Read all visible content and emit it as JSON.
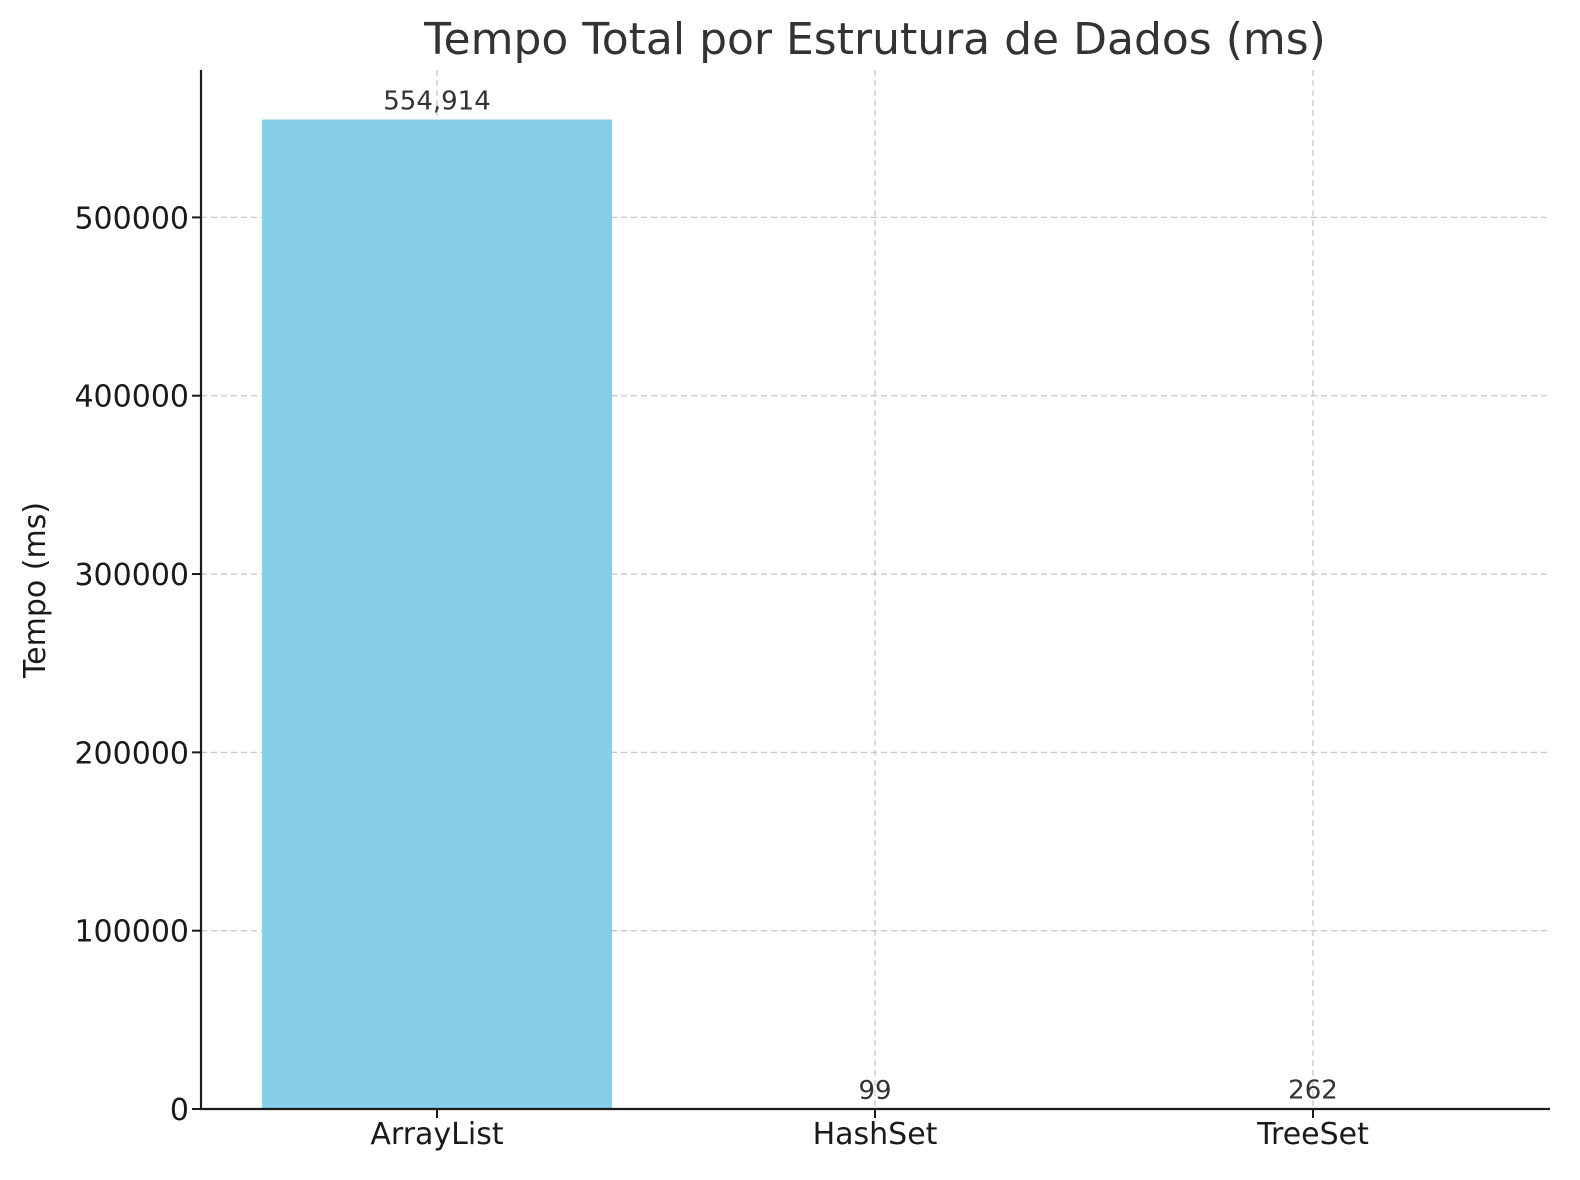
{
  "chart_data": {
    "type": "bar",
    "title": "Tempo Total por Estrutura de Dados (ms)",
    "xlabel": "",
    "ylabel": "Tempo (ms)",
    "categories": [
      "ArrayList",
      "HashSet",
      "TreeSet"
    ],
    "values": [
      554914,
      99,
      262
    ],
    "data_labels": [
      "554,914",
      "99",
      "262"
    ],
    "ylim": [
      0,
      582660
    ],
    "yticks": [
      0,
      100000,
      200000,
      300000,
      400000,
      500000
    ],
    "ytick_labels": [
      "0",
      "100000",
      "200000",
      "300000",
      "400000",
      "500000"
    ],
    "grid": true,
    "legend": "none",
    "colors": {
      "bar": "#87ceeb",
      "grid": "#c8c8c8",
      "axis": "#1a1a1a",
      "text": "#333333"
    }
  }
}
